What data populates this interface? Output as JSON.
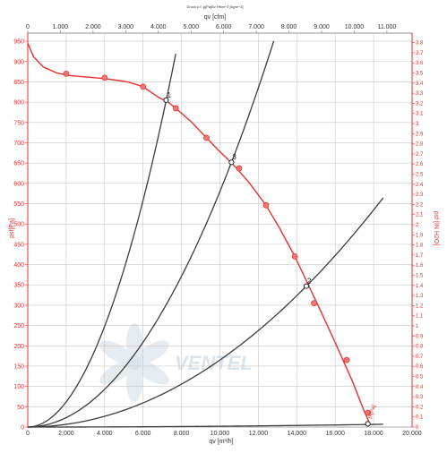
{
  "header": {
    "density_note": "Druck p f. ϱ[Pa]Bz Hfsm^3 [kg/m^3]"
  },
  "chart_data": {
    "type": "line",
    "title": "",
    "xlabel": "qv [m³/h]",
    "x2label": "qv [cfm]",
    "ylabel": "psf[Pa]",
    "y2label": "psf [IN H2O]",
    "xlim": [
      0,
      20000
    ],
    "ylim": [
      0,
      970
    ],
    "x2lim": [
      0,
      11771
    ],
    "y2lim": [
      0,
      3.894
    ],
    "x_ticks": [
      0,
      2000,
      4000,
      6000,
      8000,
      10000,
      12000,
      14000,
      16000,
      18000,
      20000
    ],
    "x_tick_labels": [
      "0",
      "2.000",
      "4.000",
      "6.000",
      "8.000",
      "10.000",
      "12.000",
      "14.000",
      "16.000",
      "18.000",
      "20.000"
    ],
    "x2_ticks": [
      0,
      1000,
      2000,
      3000,
      4000,
      5000,
      6000,
      7000,
      8000,
      9000,
      10000,
      11000
    ],
    "x2_tick_labels": [
      "0",
      "1.000",
      "2.000",
      "3.000",
      "4.000",
      "5.000",
      "6.000",
      "7.000",
      "8.000",
      "9.000",
      "10.000",
      "11.000"
    ],
    "y_ticks": [
      0,
      50,
      100,
      150,
      200,
      250,
      300,
      350,
      400,
      450,
      500,
      550,
      600,
      650,
      700,
      750,
      800,
      850,
      900,
      950
    ],
    "y2_ticks": [
      0,
      0.1,
      0.2,
      0.3,
      0.4,
      0.5,
      0.6,
      0.7,
      0.8,
      0.9,
      1,
      1.1,
      1.2,
      1.3,
      1.4,
      1.5,
      1.6,
      1.7,
      1.8,
      1.9,
      2,
      2.1,
      2.2,
      2.3,
      2.4,
      2.5,
      2.6,
      2.7,
      2.8,
      2.9,
      3,
      3.1,
      3.2,
      3.3,
      3.4,
      3.5,
      3.6,
      3.7,
      3.8
    ],
    "grid": true,
    "fan_curve": {
      "color": "#e8312f",
      "x": [
        0,
        300,
        800,
        1500,
        2100,
        3000,
        4000,
        5200,
        6000,
        6800,
        7300,
        7700,
        8500,
        9300,
        10000,
        10600,
        11500,
        12400,
        13100,
        13900,
        14600,
        15200,
        16000,
        16900,
        17500,
        17800
      ],
      "y": [
        945,
        912,
        887,
        872,
        866,
        862,
        858,
        850,
        838,
        812,
        800,
        785,
        752,
        712,
        678,
        651,
        603,
        546,
        490,
        420,
        350,
        290,
        208,
        112,
        40,
        8
      ],
      "markers_x": [
        2000,
        4000,
        6000,
        7700,
        9300,
        11000,
        12400,
        13900,
        14900,
        16600,
        17700
      ],
      "markers_y": [
        870,
        860,
        838,
        785,
        712,
        637,
        546,
        420,
        305,
        165,
        35
      ]
    },
    "system_curves": {
      "color": "#3c3c3c",
      "curves": [
        {
          "label": "1",
          "k": 1.55e-05,
          "x_end": 7700
        },
        {
          "label": "3",
          "k": 5.8e-06,
          "x_end": 12800
        },
        {
          "label": "2",
          "k": 1.65e-06,
          "x_end": 18500
        },
        {
          "label": "",
          "k": 2e-08,
          "x_end": 18500
        }
      ]
    },
    "operating_points": [
      {
        "label": "1",
        "x": 7200,
        "y": 805
      },
      {
        "label": "3",
        "x": 10600,
        "y": 652
      },
      {
        "label": "2",
        "x": 14500,
        "y": 347
      },
      {
        "label": "",
        "x": 17700,
        "y": 8
      }
    ],
    "annotation": "pf[Pa]",
    "watermark": "VENTEL"
  }
}
